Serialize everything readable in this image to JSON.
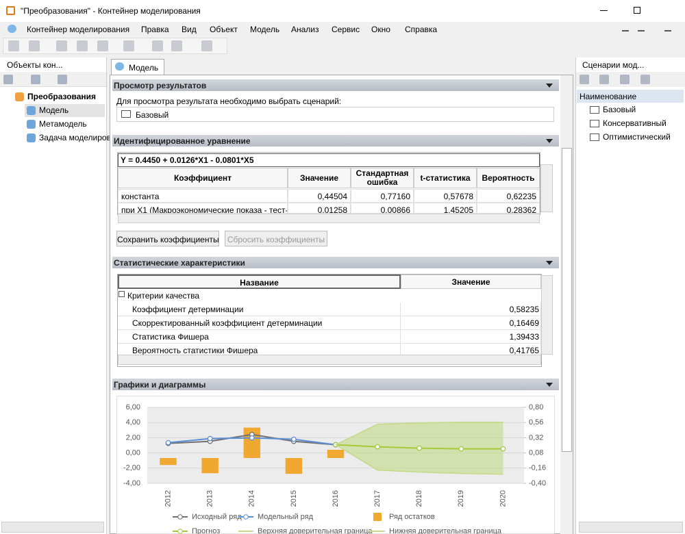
{
  "window": {
    "title": "\"Преобразования\" - Контейнер моделирования"
  },
  "menu": [
    "Контейнер моделирования",
    "Правка",
    "Вид",
    "Объект",
    "Модель",
    "Анализ",
    "Сервис",
    "Окно",
    "Справка"
  ],
  "left_panel": {
    "title": "Объекты кон...",
    "tree": [
      "Преобразования",
      "Модель",
      "Метамодель",
      "Задача моделиров"
    ]
  },
  "tab": "Модель",
  "results": {
    "title": "Просмотр результатов",
    "hint": "Для просмотра результата необходимо выбрать сценарий:",
    "scenario": "Базовый"
  },
  "equation": {
    "title": "Идентифицированное уравнение",
    "formula": "Y = 0.4450 + 0.0126*X1 - 0.0801*X5",
    "columns": [
      "Коэффициент",
      "Значение",
      "Стандартная ошибка",
      "t-статистика",
      "Вероятность"
    ],
    "rows": [
      [
        "константа",
        "0,44504",
        "0,77160",
        "0,57678",
        "0,62235"
      ],
      [
        "при X1 (Макроэкономические показа - тест-",
        "0,01258",
        "0,00866",
        "1,45205",
        "0,28362"
      ]
    ],
    "buttons": [
      "Сохранить коэффициенты",
      "Сбросить коэффициенты"
    ]
  },
  "stats": {
    "title": "Статистические характеристики",
    "columns": [
      "Название",
      "Значение"
    ],
    "group": "Критерии качества",
    "rows": [
      [
        "Коэффициент детерминации",
        "0,58235"
      ],
      [
        "Скорректированный коэффициент детерминации",
        "0,16469"
      ],
      [
        "Статистика Фишера",
        "1,39433"
      ],
      [
        "Вероятность статистики Фишера",
        "0,41765"
      ]
    ]
  },
  "charts_section": {
    "title": "Графики и диаграммы"
  },
  "chart": {
    "type": "line",
    "categories": [
      "2012",
      "2013",
      "2014",
      "2015",
      "2016",
      "2017",
      "2018",
      "2019",
      "2020"
    ],
    "ylim": [
      -4,
      6
    ],
    "yticks": [
      {
        "value": -4,
        "label": "-4,00"
      },
      {
        "value": -2,
        "label": "-2,00"
      },
      {
        "value": 0,
        "label": "0,00"
      },
      {
        "value": 2,
        "label": "2,00"
      },
      {
        "value": 4,
        "label": "4,00"
      },
      {
        "value": 6,
        "label": "6,00"
      }
    ],
    "y2lim": [
      -0.4,
      0.8
    ],
    "y2ticks": [
      {
        "value": -0.4,
        "label": "-0,40"
      },
      {
        "value": -0.16,
        "label": "-0,16"
      },
      {
        "value": 0.08,
        "label": "0,08"
      },
      {
        "value": 0.32,
        "label": "0,32"
      },
      {
        "value": 0.56,
        "label": "0,56"
      },
      {
        "value": 0.8,
        "label": "0,80"
      }
    ],
    "grid": true,
    "series": [
      {
        "name": "Исходный ряд",
        "kind": "line",
        "color": "#707070",
        "values": [
          1.26,
          1.53,
          2.43,
          1.53,
          1.08,
          null,
          null,
          null,
          null
        ]
      },
      {
        "name": "Модельный ряд",
        "kind": "line",
        "color": "#5b8fd6",
        "values": [
          1.35,
          1.89,
          1.98,
          1.8,
          1.08,
          null,
          null,
          null,
          null
        ]
      },
      {
        "name": "Ряд остатков",
        "kind": "bar",
        "axis": "y2",
        "color": "#f0a830",
        "values": [
          -0.11,
          -0.24,
          0.48,
          -0.25,
          0.13,
          null,
          null,
          null,
          null
        ]
      },
      {
        "name": "Прогноз",
        "kind": "line",
        "color": "#a5c93a",
        "values": [
          null,
          null,
          null,
          null,
          1.08,
          0.81,
          0.63,
          0.54,
          0.54
        ]
      },
      {
        "name": "Верхняя доверительная граница",
        "kind": "upper_bound",
        "color": "#c3da86",
        "values": [
          null,
          null,
          null,
          null,
          1.08,
          3.78,
          3.96,
          4.05,
          4.05
        ]
      },
      {
        "name": "Нижняя доверительная граница",
        "kind": "lower_bound",
        "color": "#c3da86",
        "values": [
          null,
          null,
          null,
          null,
          1.08,
          -2.25,
          -2.52,
          -2.7,
          -2.79
        ]
      }
    ]
  },
  "right_panel": {
    "title": "Сценарии мод...",
    "column": "Наименование",
    "items": [
      "Базовый",
      "Консервативный",
      "Оптимистический"
    ]
  }
}
